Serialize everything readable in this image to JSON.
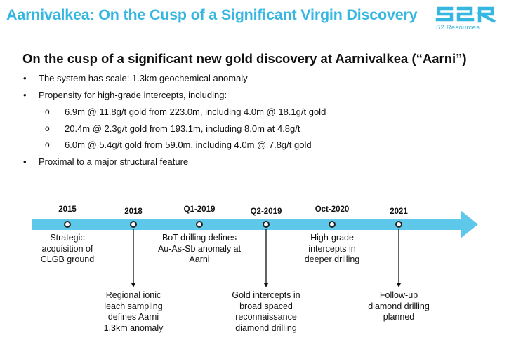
{
  "header": {
    "title": "Aarnivalkea: On the Cusp of a Significant Virgin Discovery",
    "logo_mark": "S2R",
    "logo_text": "S2 Resources",
    "accent_color": "#36b7e2"
  },
  "content": {
    "title": "On the cusp of a significant new gold discovery at Aarnivalkea (“Aarni”)",
    "bullets": [
      "The system has scale: 1.3km geochemical anomaly",
      "Propensity for high-grade intercepts, including:",
      "Proximal to a major structural feature"
    ],
    "sub_bullets": [
      "6.9m @ 11.8g/t gold from 223.0m, including 4.0m @ 18.1g/t gold",
      "20.4m @ 2.3g/t gold from 193.1m, including 8.0m at 4.8g/t",
      "6.0m @ 5.4g/t gold from 59.0m, including 4.0m @ 7.8g/t gold"
    ]
  },
  "timeline": {
    "arrow_color": "#5ec8ea",
    "milestones": [
      {
        "year": "2015",
        "lines": [
          "Strategic",
          "acquisition of",
          "CLGB ground"
        ]
      },
      {
        "year": "2018",
        "lines": [
          "Regional ionic",
          "leach sampling",
          "defines Aarni",
          "1.3km anomaly"
        ]
      },
      {
        "year": "Q1-2019",
        "lines": [
          "BoT drilling defines",
          "Au-As-Sb anomaly at",
          "Aarni"
        ]
      },
      {
        "year": "Q2-2019",
        "lines": [
          "Gold intercepts in",
          "broad spaced",
          "reconnaissance",
          "diamond drilling"
        ]
      },
      {
        "year": "Oct-2020",
        "lines": [
          "High-grade",
          "intercepts in",
          "deeper drilling"
        ]
      },
      {
        "year": "2021",
        "lines": [
          "Follow-up",
          "diamond drilling",
          "planned"
        ]
      }
    ]
  }
}
